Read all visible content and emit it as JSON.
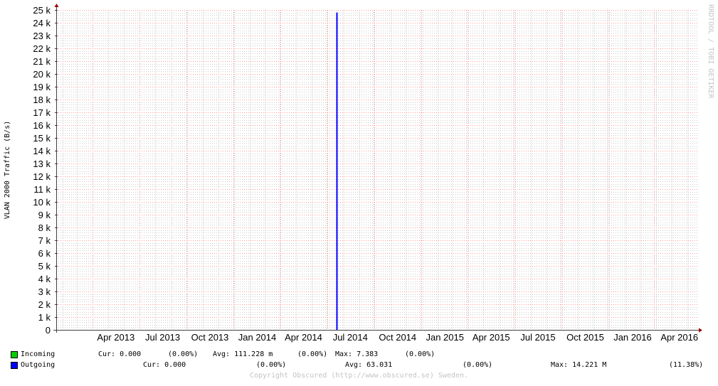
{
  "chart_data": {
    "type": "line",
    "ylabel": "VLAN 2000 Traffic (B/s)",
    "watermark": "RRDTOOL / TOBI OETIKER",
    "ylim": [
      0,
      25000
    ],
    "yticks": [
      "0",
      "1 k",
      "2 k",
      "3 k",
      "4 k",
      "5 k",
      "6 k",
      "7 k",
      "8 k",
      "9 k",
      "10 k",
      "11 k",
      "12 k",
      "13 k",
      "14 k",
      "15 k",
      "16 k",
      "17 k",
      "18 k",
      "19 k",
      "20 k",
      "21 k",
      "22 k",
      "23 k",
      "24 k",
      "25 k"
    ],
    "xlim": [
      "2013-01-20",
      "2016-06-20"
    ],
    "xticks": [
      {
        "label": "Apr 2013",
        "date": "2013-04-01"
      },
      {
        "label": "Jul 2013",
        "date": "2013-07-01"
      },
      {
        "label": "Oct 2013",
        "date": "2013-10-01"
      },
      {
        "label": "Jan 2014",
        "date": "2014-01-01"
      },
      {
        "label": "Apr 2014",
        "date": "2014-04-01"
      },
      {
        "label": "Jul 2014",
        "date": "2014-07-01"
      },
      {
        "label": "Oct 2014",
        "date": "2014-10-01"
      },
      {
        "label": "Jan 2015",
        "date": "2015-01-01"
      },
      {
        "label": "Apr 2015",
        "date": "2015-04-01"
      },
      {
        "label": "Jul 2015",
        "date": "2015-07-01"
      },
      {
        "label": "Oct 2015",
        "date": "2015-10-01"
      },
      {
        "label": "Jan 2016",
        "date": "2016-01-01"
      },
      {
        "label": "Apr 2016",
        "date": "2016-04-01"
      }
    ],
    "grid": true,
    "series": [
      {
        "name": "Incoming",
        "color": "#00cc00",
        "points": [
          {
            "x": "2014-07-20",
            "y": 0
          }
        ]
      },
      {
        "name": "Outgoing",
        "color": "#0000ff",
        "points": [
          {
            "x": "2014-07-20",
            "y": 0
          },
          {
            "x": "2014-07-20",
            "y": 24800
          }
        ]
      }
    ],
    "legend": [
      {
        "name": "Incoming",
        "color": "#00cc00",
        "cur": "Cur: 0.000",
        "cur_pct": "(0.00%)",
        "avg": "Avg: 111.228 m",
        "avg_pct": "(0.00%)",
        "max": "Max: 7.383",
        "max_pct": "(0.00%)"
      },
      {
        "name": "Outgoing",
        "color": "#0000ff",
        "cur": "Cur: 0.000",
        "cur_pct": "(0.00%)",
        "avg": "Avg: 63.031",
        "avg_pct": "(0.00%)",
        "max": "Max: 14.221 M",
        "max_pct": "(11.38%)"
      }
    ],
    "copyright": "Copyright Obscured (http://www.obscured.se) Sweden.",
    "colors": {
      "major_grid": "#ff9999",
      "minor_grid": "#cccccc",
      "axis": "#404040",
      "arrow": "#a00000"
    }
  }
}
